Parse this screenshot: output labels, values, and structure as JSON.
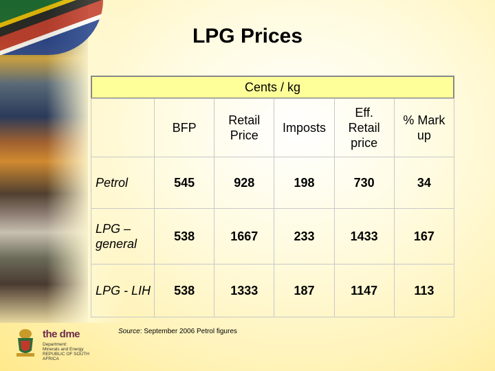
{
  "title": "LPG Prices",
  "table": {
    "unit_header": "Cents / kg",
    "columns": [
      "BFP",
      "Retail Price",
      "Imposts",
      "Eff. Retail price",
      "% Mark up"
    ],
    "rows": [
      {
        "label": "Petrol",
        "values": [
          "545",
          "928",
          "198",
          "730",
          "34"
        ]
      },
      {
        "label": "LPG – general",
        "values": [
          "538",
          "1667",
          "233",
          "1433",
          "167"
        ]
      },
      {
        "label": "LPG - LIH",
        "values": [
          "538",
          "1333",
          "187",
          "1147",
          "113"
        ]
      }
    ]
  },
  "source": {
    "label": "Source",
    "text": ": September 2006 Petrol figures"
  },
  "logo": {
    "brand": "the dme",
    "lines": [
      "Department:",
      "Minerals and Energy",
      "REPUBLIC OF SOUTH AFRICA"
    ]
  },
  "colors": {
    "header_band": "#ffff99",
    "background": "#fff3b8"
  }
}
